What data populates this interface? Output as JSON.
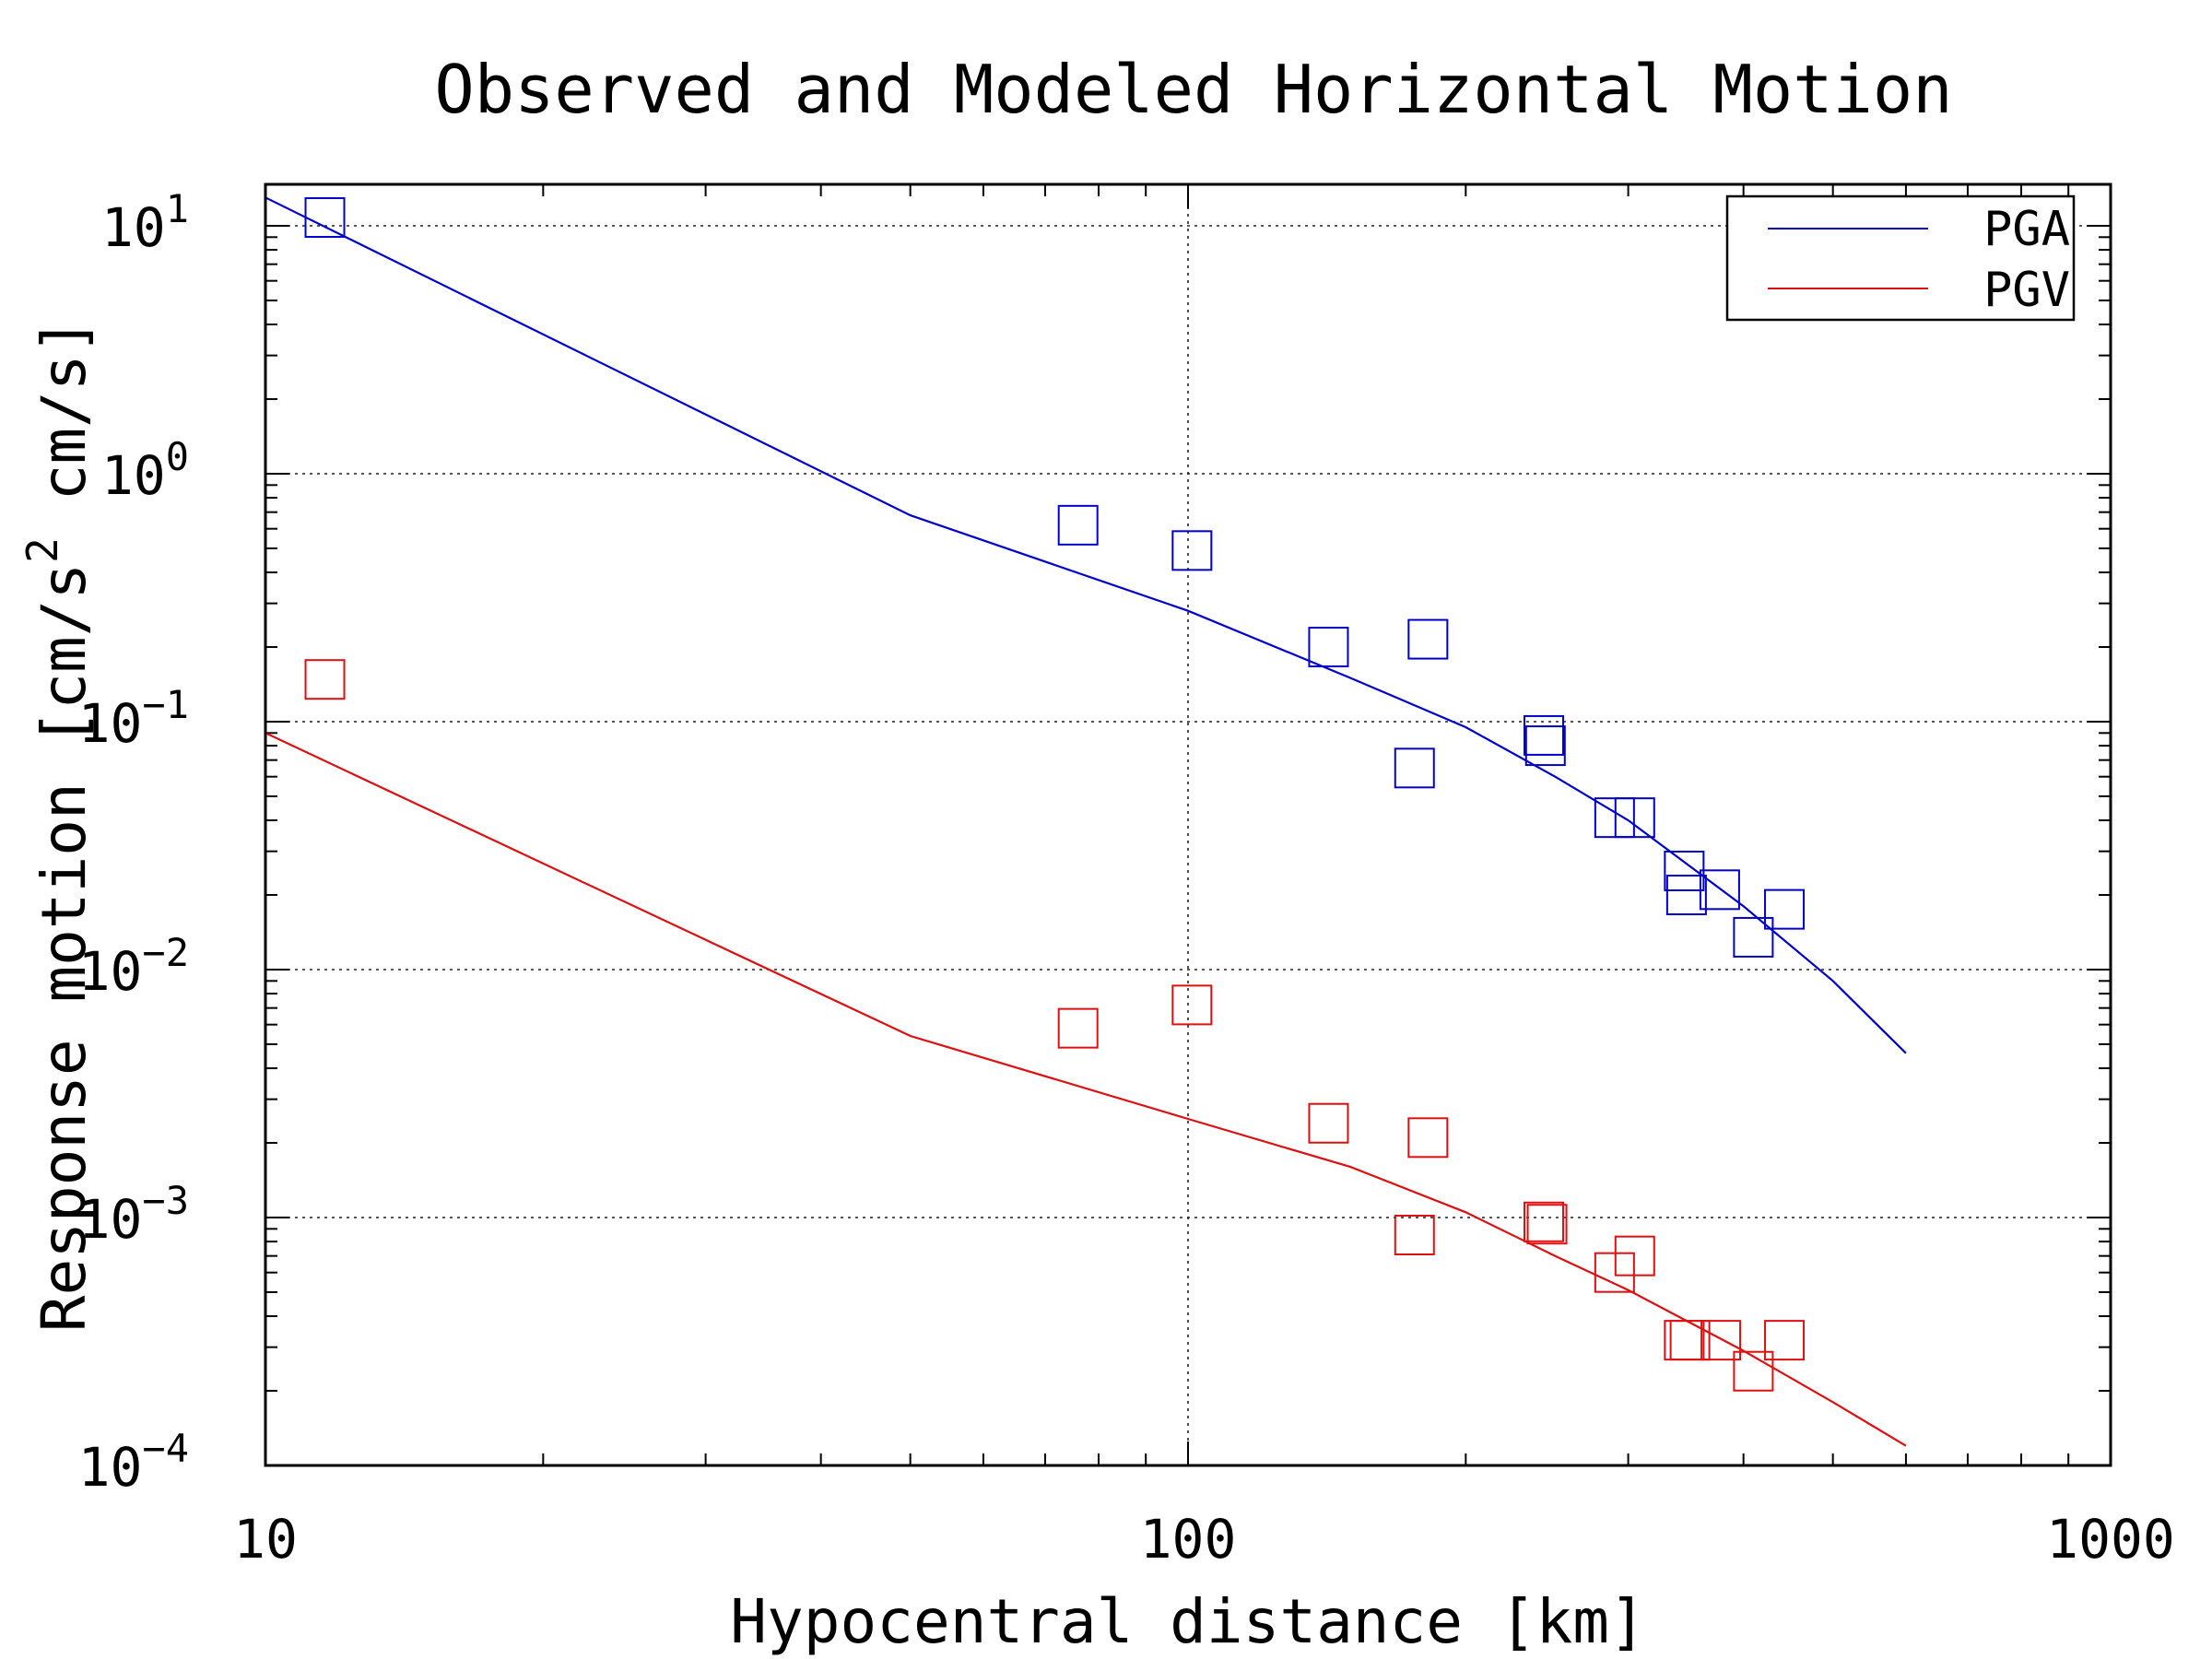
{
  "chart_data": {
    "type": "scatter",
    "title": "Observed and Modeled Horizontal Motion",
    "xlabel": "Hypocentral distance [km]",
    "ylabel": {
      "part1": "Response motion  [cm/s",
      "sup": "2",
      "part2": "  cm/s]"
    },
    "x_scale": "log",
    "y_scale": "log",
    "xlim": [
      10,
      1000
    ],
    "ylim": [
      0.0001,
      15
    ],
    "x_ticks": [
      {
        "value": 10,
        "label": "10"
      },
      {
        "value": 100,
        "label": "100"
      },
      {
        "value": 1000,
        "label": "1000"
      }
    ],
    "y_ticks": [
      {
        "value": 10,
        "base": "10",
        "exp": "1"
      },
      {
        "value": 1,
        "base": "10",
        "exp": "0"
      },
      {
        "value": 0.1,
        "base": "10",
        "exp": "−1"
      },
      {
        "value": 0.01,
        "base": "10",
        "exp": "−2"
      },
      {
        "value": 0.001,
        "base": "10",
        "exp": "−3"
      },
      {
        "value": 0.0001,
        "base": "10",
        "exp": "−4"
      }
    ],
    "grid": true,
    "legend_position": "top-right",
    "series": [
      {
        "name": "PGA",
        "color": "#0000cc",
        "line": {
          "x": [
            10,
            50,
            100,
            150,
            200,
            250,
            300,
            400,
            500,
            600
          ],
          "y": [
            13,
            0.68,
            0.28,
            0.15,
            0.095,
            0.06,
            0.04,
            0.018,
            0.009,
            0.0046
          ]
        },
        "points": [
          {
            "x": 11.6,
            "y": 10.8
          },
          {
            "x": 76,
            "y": 0.62
          },
          {
            "x": 101,
            "y": 0.49
          },
          {
            "x": 142,
            "y": 0.2
          },
          {
            "x": 182,
            "y": 0.215
          },
          {
            "x": 176,
            "y": 0.065
          },
          {
            "x": 243,
            "y": 0.088
          },
          {
            "x": 244,
            "y": 0.08
          },
          {
            "x": 290,
            "y": 0.041
          },
          {
            "x": 305,
            "y": 0.041
          },
          {
            "x": 345,
            "y": 0.025
          },
          {
            "x": 347,
            "y": 0.02
          },
          {
            "x": 377,
            "y": 0.021
          },
          {
            "x": 410,
            "y": 0.0135
          },
          {
            "x": 443,
            "y": 0.0175
          }
        ]
      },
      {
        "name": "PGV",
        "color": "#dd1111",
        "line": {
          "x": [
            10,
            50,
            100,
            150,
            200,
            250,
            300,
            400,
            500,
            600
          ],
          "y": [
            0.09,
            0.0054,
            0.0025,
            0.0016,
            0.00105,
            0.0007,
            0.00051,
            0.00029,
            0.00018,
            0.00012
          ]
        },
        "points": [
          {
            "x": 11.6,
            "y": 0.148
          },
          {
            "x": 76,
            "y": 0.0058
          },
          {
            "x": 101,
            "y": 0.0072
          },
          {
            "x": 142,
            "y": 0.0024
          },
          {
            "x": 182,
            "y": 0.0021
          },
          {
            "x": 176,
            "y": 0.00085
          },
          {
            "x": 243,
            "y": 0.00096
          },
          {
            "x": 245,
            "y": 0.00094
          },
          {
            "x": 290,
            "y": 0.0006
          },
          {
            "x": 305,
            "y": 0.0007
          },
          {
            "x": 345,
            "y": 0.00032
          },
          {
            "x": 350,
            "y": 0.00032
          },
          {
            "x": 378,
            "y": 0.00032
          },
          {
            "x": 410,
            "y": 0.00024
          },
          {
            "x": 443,
            "y": 0.00032
          }
        ]
      }
    ]
  }
}
